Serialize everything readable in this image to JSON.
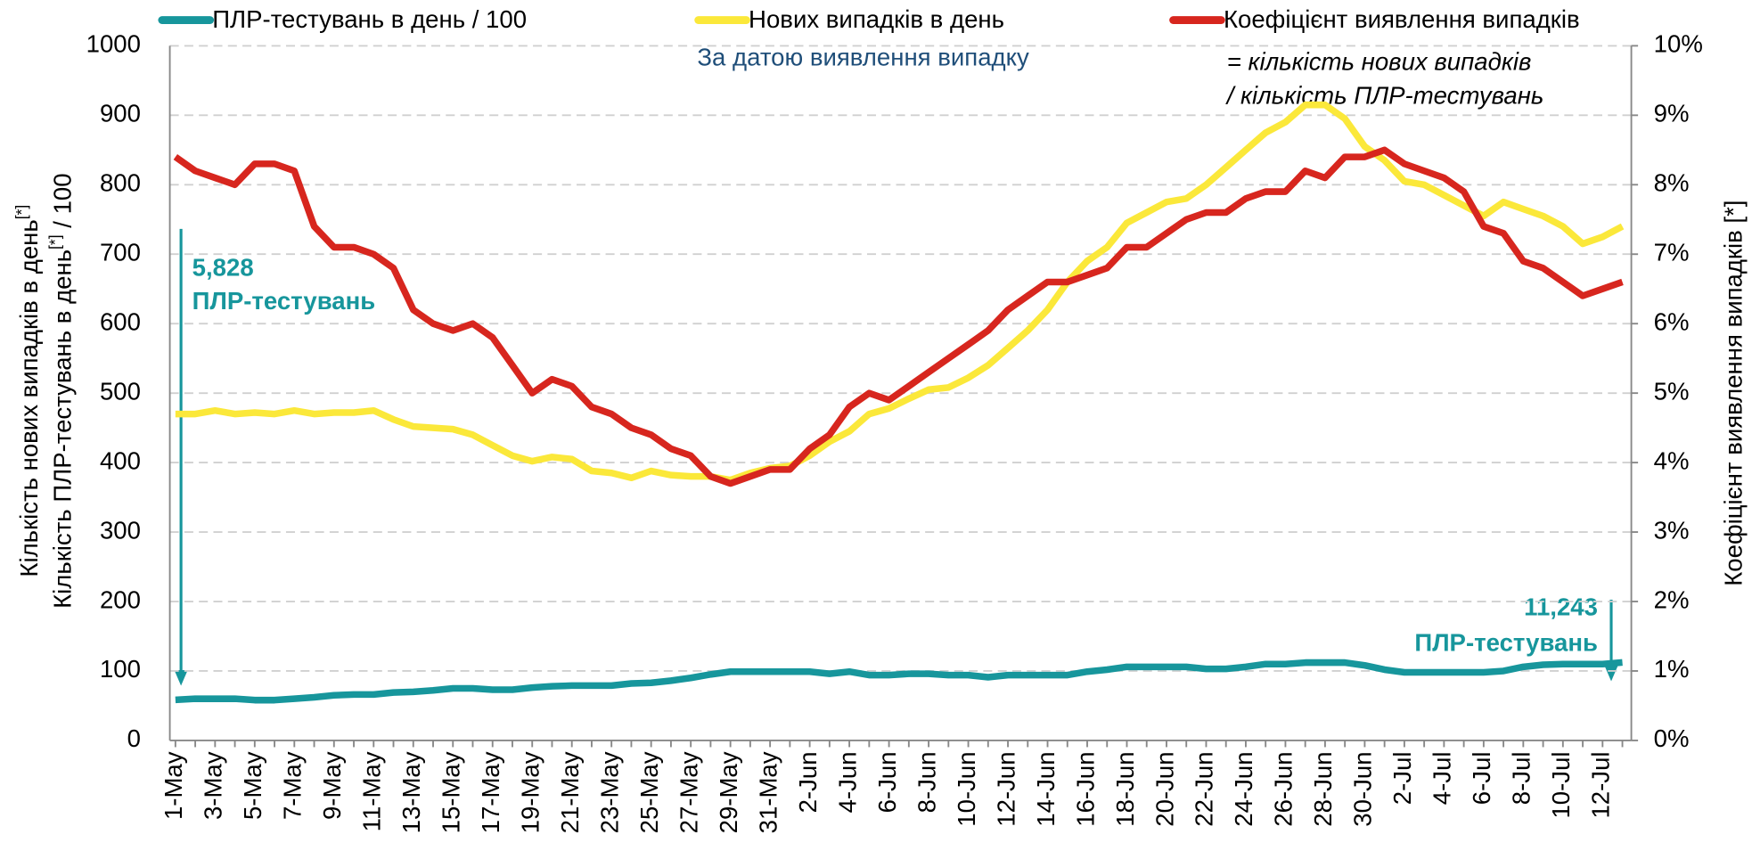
{
  "chart_data": {
    "type": "line",
    "subtitle": "За датою виявлення випадку",
    "annotations": [
      "= кількість нових випадків",
      " / кількість ПЛР-тестувань",
      "5,828",
      "ПЛР-тестувань",
      "11,243",
      "ПЛР-тестувань"
    ],
    "ylabel": [
      [
        "Кількість нових випадків в день",
        "[*]"
      ],
      [
        "Кількість ПЛР-тестувань в день",
        "[*]",
        " / 100"
      ]
    ],
    "y2label": "Коефіцієнт виявлення випадків [*]",
    "categories": [
      "1-May",
      null,
      "3-May",
      null,
      "5-May",
      null,
      "7-May",
      null,
      "9-May",
      null,
      "11-May",
      null,
      "13-May",
      null,
      "15-May",
      null,
      "17-May",
      null,
      "19-May",
      null,
      "21-May",
      null,
      "23-May",
      null,
      "25-May",
      null,
      "27-May",
      null,
      "29-May",
      null,
      "31-May",
      null,
      "2-Jun",
      null,
      "4-Jun",
      null,
      "6-Jun",
      null,
      "8-Jun",
      null,
      "10-Jun",
      null,
      "12-Jun",
      null,
      "14-Jun",
      null,
      "16-Jun",
      null,
      "18-Jun",
      null,
      "20-Jun",
      null,
      "22-Jun",
      null,
      "24-Jun",
      null,
      "26-Jun",
      null,
      "28-Jun",
      null,
      "30-Jun",
      null,
      "2-Jul",
      null,
      "4-Jul",
      null,
      "6-Jul",
      null,
      "8-Jul",
      null,
      "10-Jul",
      null,
      "12-Jul",
      null
    ],
    "series": [
      {
        "name": "ПЛР-тестувань в день / 100",
        "color": "#17969c",
        "axis": "y",
        "values": [
          58.28,
          60,
          60,
          60,
          58,
          58,
          60,
          62,
          65,
          66,
          66,
          69,
          70,
          72,
          75,
          75,
          73,
          73,
          76,
          78,
          79,
          79,
          79,
          82,
          83,
          86,
          90,
          95,
          99,
          99,
          99,
          99,
          99,
          96,
          99,
          94,
          94,
          96,
          96,
          94,
          94,
          91,
          94,
          94,
          94,
          94,
          99,
          102,
          106,
          106,
          106,
          106,
          103,
          103,
          106,
          110,
          110,
          112,
          112,
          112,
          108,
          102,
          98,
          98,
          98,
          98,
          98,
          100,
          106,
          109,
          110,
          110,
          110,
          112.43
        ]
      },
      {
        "name": "Нових випадків в день",
        "color": "#fbe83a",
        "axis": "y",
        "values": [
          470,
          470,
          475,
          470,
          472,
          470,
          475,
          470,
          472,
          472,
          475,
          462,
          452,
          450,
          448,
          440,
          425,
          410,
          402,
          408,
          405,
          388,
          385,
          378,
          388,
          382,
          380,
          380,
          375,
          385,
          392,
          395,
          410,
          430,
          445,
          470,
          478,
          492,
          505,
          508,
          522,
          540,
          565,
          590,
          620,
          660,
          690,
          710,
          745,
          760,
          775,
          780,
          800,
          825,
          850,
          875,
          890,
          915,
          915,
          895,
          855,
          835,
          805,
          800,
          785,
          770,
          755,
          775,
          765,
          755,
          740,
          715,
          725,
          740
        ]
      },
      {
        "name": "Коефіцієнт виявлення випадків",
        "color": "#d7261e",
        "axis": "y2",
        "values": [
          8.4,
          8.2,
          8.1,
          8.0,
          8.3,
          8.3,
          8.2,
          7.4,
          7.1,
          7.1,
          7.0,
          6.8,
          6.2,
          6.0,
          5.9,
          6.0,
          5.8,
          5.4,
          5.0,
          5.2,
          5.1,
          4.8,
          4.7,
          4.5,
          4.4,
          4.2,
          4.1,
          3.8,
          3.7,
          3.8,
          3.9,
          3.9,
          4.2,
          4.4,
          4.8,
          5.0,
          4.9,
          5.1,
          5.3,
          5.5,
          5.7,
          5.9,
          6.2,
          6.4,
          6.6,
          6.6,
          6.7,
          6.8,
          7.1,
          7.1,
          7.3,
          7.5,
          7.6,
          7.6,
          7.8,
          7.9,
          7.9,
          8.2,
          8.1,
          8.4,
          8.4,
          8.5,
          8.3,
          8.2,
          8.1,
          7.9,
          7.4,
          7.3,
          6.9,
          6.8,
          6.6,
          6.4,
          6.5,
          6.6
        ]
      }
    ],
    "ylim": [
      0,
      1000
    ],
    "yticks": [
      0,
      100,
      200,
      300,
      400,
      500,
      600,
      700,
      800,
      900,
      1000
    ],
    "y2lim": [
      0,
      10
    ],
    "y2ticks": [
      {
        "value": 0,
        "label": "0%"
      },
      {
        "value": 1,
        "label": "1%"
      },
      {
        "value": 2,
        "label": "2%"
      },
      {
        "value": 3,
        "label": "3%"
      },
      {
        "value": 4,
        "label": "4%"
      },
      {
        "value": 5,
        "label": "5%"
      },
      {
        "value": 6,
        "label": "6%"
      },
      {
        "value": 7,
        "label": "7%"
      },
      {
        "value": 8,
        "label": "8%"
      },
      {
        "value": 9,
        "label": "9%"
      },
      {
        "value": 10,
        "label": "10%"
      }
    ],
    "grid": true
  }
}
